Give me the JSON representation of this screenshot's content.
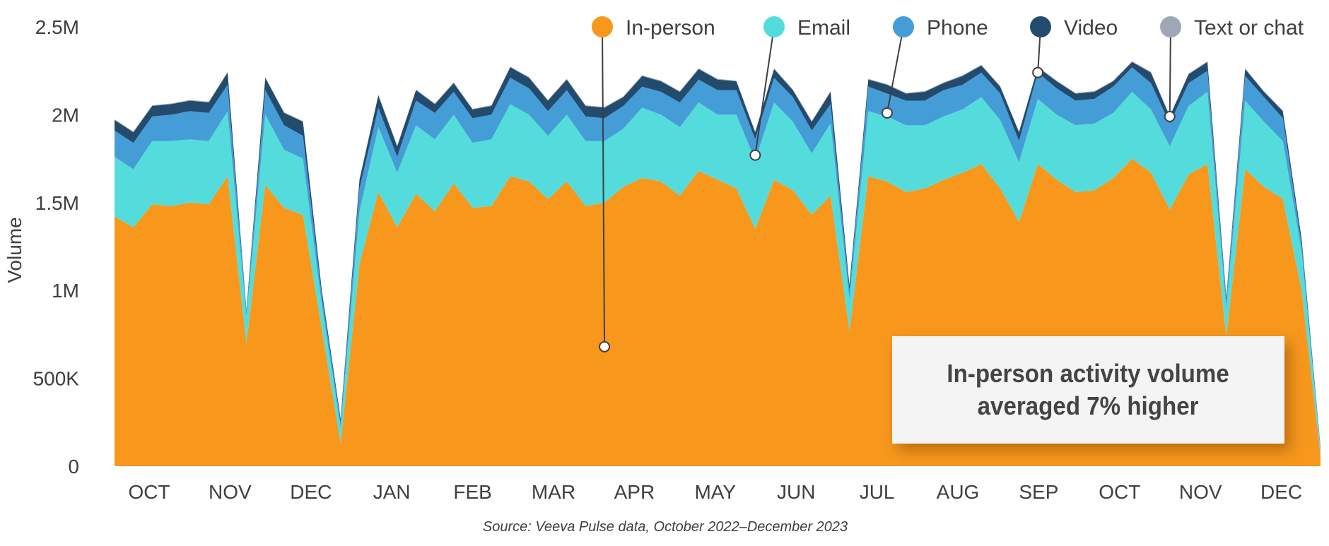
{
  "chart_data": {
    "type": "area",
    "stacked": true,
    "title": "",
    "xlabel": "",
    "ylabel": "Volume",
    "ylim": [
      0,
      2500000
    ],
    "yticks": [
      0,
      500000,
      1000000,
      1500000,
      2000000,
      2500000
    ],
    "ytick_labels": [
      "0",
      "500K",
      "1M",
      "1.5M",
      "2M",
      "2.5M"
    ],
    "x_unit": "week",
    "month_labels": [
      "OCT",
      "NOV",
      "DEC",
      "JAN",
      "FEB",
      "MAR",
      "APR",
      "MAY",
      "JUN",
      "JUL",
      "AUG",
      "SEP",
      "OCT",
      "NOV",
      "DEC"
    ],
    "grid": false,
    "legend_position": "top",
    "series": [
      {
        "name": "In-person",
        "color": "#F7981D",
        "values_millions": [
          1.42,
          1.36,
          1.49,
          1.48,
          1.5,
          1.49,
          1.65,
          0.7,
          1.6,
          1.47,
          1.43,
          0.78,
          0.13,
          1.15,
          1.56,
          1.36,
          1.55,
          1.45,
          1.61,
          1.47,
          1.48,
          1.65,
          1.62,
          1.52,
          1.62,
          1.48,
          1.5,
          1.59,
          1.64,
          1.62,
          1.54,
          1.68,
          1.63,
          1.58,
          1.35,
          1.63,
          1.57,
          1.43,
          1.54,
          0.77,
          1.65,
          1.62,
          1.56,
          1.58,
          1.63,
          1.67,
          1.72,
          1.58,
          1.39,
          1.72,
          1.63,
          1.56,
          1.57,
          1.64,
          1.75,
          1.67,
          1.46,
          1.66,
          1.72,
          0.74,
          1.69,
          1.59,
          1.52,
          1.0,
          0.06
        ]
      },
      {
        "name": "Email",
        "color": "#54DCDC",
        "values_millions": [
          0.34,
          0.33,
          0.36,
          0.37,
          0.36,
          0.36,
          0.37,
          0.15,
          0.4,
          0.33,
          0.32,
          0.14,
          0.09,
          0.3,
          0.37,
          0.31,
          0.39,
          0.41,
          0.39,
          0.37,
          0.38,
          0.41,
          0.38,
          0.36,
          0.38,
          0.37,
          0.35,
          0.33,
          0.4,
          0.38,
          0.39,
          0.39,
          0.37,
          0.42,
          0.39,
          0.44,
          0.39,
          0.35,
          0.41,
          0.18,
          0.37,
          0.37,
          0.38,
          0.36,
          0.36,
          0.36,
          0.38,
          0.39,
          0.34,
          0.37,
          0.37,
          0.38,
          0.38,
          0.37,
          0.38,
          0.36,
          0.36,
          0.39,
          0.41,
          0.16,
          0.39,
          0.37,
          0.33,
          0.22,
          0.03
        ]
      },
      {
        "name": "Phone",
        "color": "#449DD6",
        "values_millions": [
          0.15,
          0.15,
          0.14,
          0.15,
          0.16,
          0.16,
          0.15,
          0.03,
          0.14,
          0.14,
          0.13,
          0.05,
          0.03,
          0.13,
          0.11,
          0.09,
          0.14,
          0.15,
          0.13,
          0.14,
          0.14,
          0.15,
          0.15,
          0.14,
          0.14,
          0.14,
          0.13,
          0.13,
          0.12,
          0.13,
          0.14,
          0.13,
          0.14,
          0.14,
          0.12,
          0.14,
          0.14,
          0.13,
          0.11,
          0.05,
          0.14,
          0.13,
          0.14,
          0.14,
          0.15,
          0.14,
          0.14,
          0.15,
          0.12,
          0.15,
          0.15,
          0.14,
          0.14,
          0.15,
          0.14,
          0.15,
          0.13,
          0.13,
          0.12,
          0.04,
          0.14,
          0.14,
          0.13,
          0.04,
          0.01
        ]
      },
      {
        "name": "Video",
        "color": "#234B6E",
        "values_millions": [
          0.06,
          0.06,
          0.06,
          0.06,
          0.06,
          0.06,
          0.07,
          0.01,
          0.07,
          0.07,
          0.08,
          0.03,
          0.02,
          0.05,
          0.07,
          0.06,
          0.06,
          0.05,
          0.05,
          0.05,
          0.05,
          0.06,
          0.06,
          0.06,
          0.06,
          0.06,
          0.06,
          0.05,
          0.06,
          0.06,
          0.06,
          0.06,
          0.06,
          0.05,
          0.04,
          0.05,
          0.04,
          0.05,
          0.07,
          0.03,
          0.04,
          0.05,
          0.04,
          0.05,
          0.04,
          0.05,
          0.04,
          0.04,
          0.05,
          0.03,
          0.04,
          0.04,
          0.04,
          0.03,
          0.03,
          0.06,
          0.04,
          0.05,
          0.05,
          0.02,
          0.04,
          0.03,
          0.04,
          0.03,
          0.01
        ]
      },
      {
        "name": "Text or chat",
        "color": "#9EA7B5",
        "values_millions": [
          0.004,
          0.004,
          0.004,
          0.004,
          0.004,
          0.004,
          0.004,
          0.001,
          0.004,
          0.004,
          0.004,
          0.002,
          0.001,
          0.003,
          0.004,
          0.004,
          0.004,
          0.004,
          0.004,
          0.004,
          0.004,
          0.004,
          0.004,
          0.004,
          0.004,
          0.004,
          0.004,
          0.004,
          0.004,
          0.004,
          0.004,
          0.004,
          0.004,
          0.004,
          0.004,
          0.004,
          0.004,
          0.004,
          0.004,
          0.002,
          0.004,
          0.004,
          0.004,
          0.004,
          0.004,
          0.004,
          0.004,
          0.004,
          0.004,
          0.004,
          0.004,
          0.004,
          0.004,
          0.004,
          0.004,
          0.004,
          0.004,
          0.004,
          0.004,
          0.002,
          0.004,
          0.004,
          0.004,
          0.002,
          0.001
        ]
      }
    ],
    "annotation": {
      "line1": "In-person activity volume",
      "line2": "averaged 7% higher"
    },
    "source": "Source: Veeva Pulse data, October 2022–December 2023"
  }
}
